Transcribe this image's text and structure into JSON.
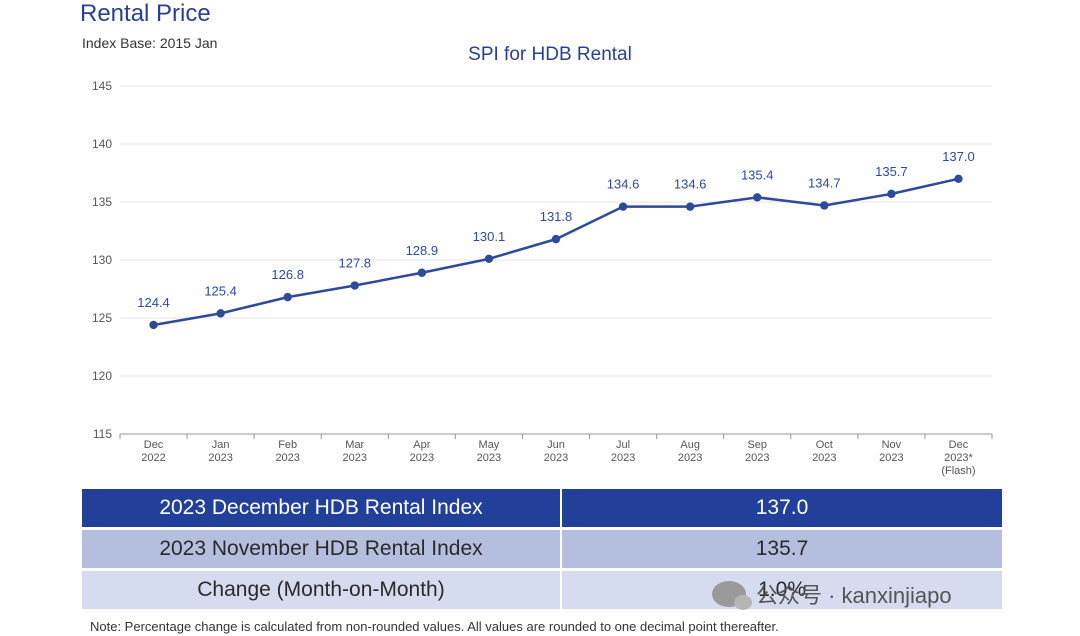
{
  "header": {
    "title": "Rental Price",
    "index_base": "Index Base: 2015 Jan"
  },
  "chart_data": {
    "type": "line",
    "title": "SPI for HDB Rental",
    "xlabel": "",
    "ylabel": "",
    "ylim": [
      115,
      145
    ],
    "yticks": [
      115,
      120,
      125,
      130,
      135,
      140,
      145
    ],
    "grid": true,
    "categories": [
      [
        "Dec",
        "2022"
      ],
      [
        "Jan",
        "2023"
      ],
      [
        "Feb",
        "2023"
      ],
      [
        "Mar",
        "2023"
      ],
      [
        "Apr",
        "2023"
      ],
      [
        "May",
        "2023"
      ],
      [
        "Jun",
        "2023"
      ],
      [
        "Jul",
        "2023"
      ],
      [
        "Aug",
        "2023"
      ],
      [
        "Sep",
        "2023"
      ],
      [
        "Oct",
        "2023"
      ],
      [
        "Nov",
        "2023"
      ],
      [
        "Dec",
        "2023*",
        "(Flash)"
      ]
    ],
    "values": [
      124.4,
      125.4,
      126.8,
      127.8,
      128.9,
      130.1,
      131.8,
      134.6,
      134.6,
      135.4,
      134.7,
      135.7,
      137.0
    ],
    "value_labels": [
      "124.4",
      "125.4",
      "126.8",
      "127.8",
      "128.9",
      "130.1",
      "131.8",
      "134.6",
      "134.6",
      "135.4",
      "134.7",
      "135.7",
      "137.0"
    ],
    "line_color": "#2e4a9a",
    "title_color": "#2b3f8f"
  },
  "table": {
    "rows": [
      {
        "label": "2023 December HDB Rental Index",
        "value": "137.0"
      },
      {
        "label": "2023 November HDB Rental Index",
        "value": "135.7"
      },
      {
        "label": "Change (Month-on-Month)",
        "value": "1.0%"
      }
    ]
  },
  "note": "Note: Percentage change is calculated from non-rounded values.  All values are rounded to one decimal point thereafter.",
  "watermark": {
    "text": "公众号 · kanxinjiapo",
    "icon": "wechat-icon"
  }
}
